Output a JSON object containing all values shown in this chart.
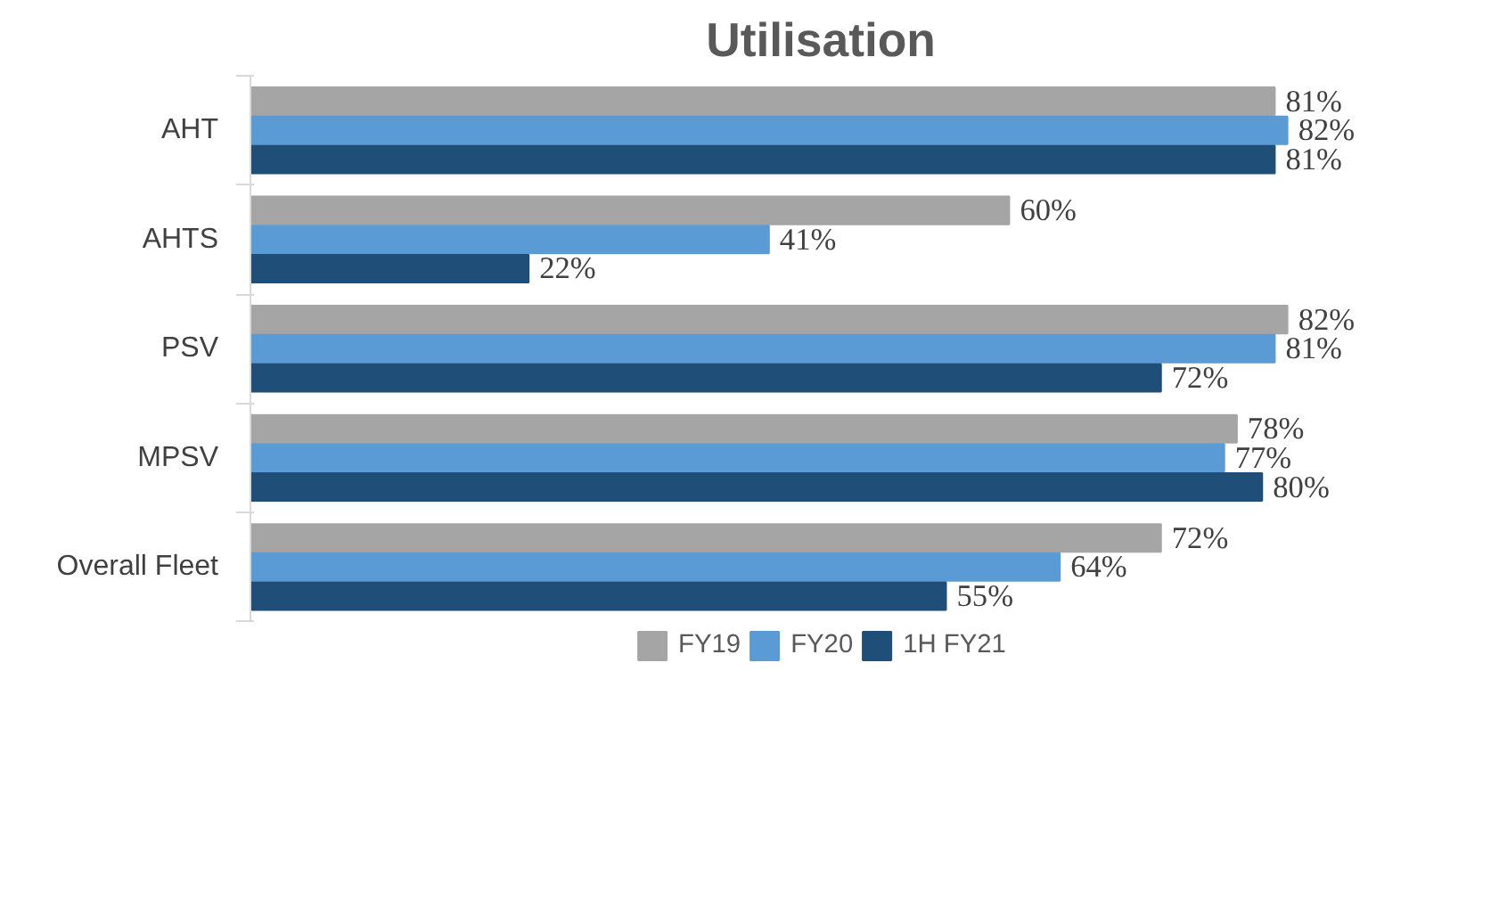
{
  "chart_data": {
    "type": "bar",
    "orientation": "horizontal",
    "title": "Utilisation",
    "categories": [
      "AHT",
      "AHTS",
      "PSV",
      "MPSV",
      "Overall Fleet"
    ],
    "series": [
      {
        "name": "FY19",
        "color": "#a5a5a5",
        "values": [
          81,
          60,
          82,
          78,
          72
        ],
        "value_labels": [
          "81%",
          "60%",
          "82%",
          "78%",
          "72%"
        ]
      },
      {
        "name": "FY20",
        "color": "#5b9bd5",
        "values": [
          82,
          41,
          81,
          77,
          64
        ],
        "value_labels": [
          "82%",
          "41%",
          "81%",
          "77%",
          "64%"
        ]
      },
      {
        "name": "1H FY21",
        "color": "#1f4e79",
        "values": [
          81,
          22,
          72,
          80,
          55
        ],
        "value_labels": [
          "81%",
          "22%",
          "72%",
          "80%",
          "55%"
        ]
      }
    ],
    "legend": "bottom"
  }
}
